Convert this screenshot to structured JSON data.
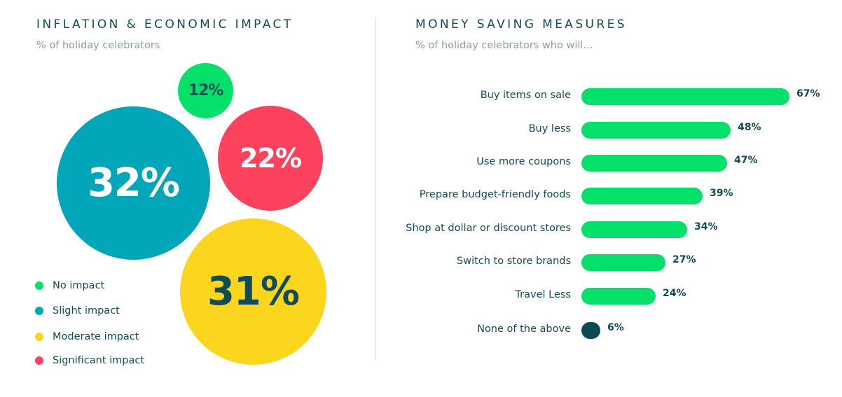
{
  "left_panel": {
    "title": "INFLATION & ECONOMIC IMPACT",
    "subtitle": "% of holiday celebrators"
  },
  "right_panel": {
    "title": "MONEY SAVING MEASURES",
    "subtitle": "% of holiday celebrators who will..."
  },
  "chart_data": [
    {
      "type": "bubble",
      "title": "INFLATION & ECONOMIC IMPACT",
      "subtitle": "% of holiday celebrators",
      "legend_position": "bottom-left",
      "categories": [
        "No impact",
        "Slight impact",
        "Moderate impact",
        "Significant impact"
      ],
      "values": [
        12,
        32,
        31,
        22
      ],
      "value_labels": [
        "12%",
        "32%",
        "31%",
        "22%"
      ],
      "colors": [
        "#05e06a",
        "#02a6b9",
        "#fcd51f",
        "#fd425d"
      ]
    },
    {
      "type": "bar",
      "orientation": "horizontal",
      "title": "MONEY SAVING MEASURES",
      "subtitle": "% of holiday celebrators who will...",
      "categories": [
        "Buy items on sale",
        "Buy less",
        "Use more coupons",
        "Prepare budget-friendly foods",
        "Shop at dollar or discount stores",
        "Switch to store brands",
        "Travel Less",
        "None of the above"
      ],
      "values": [
        67,
        48,
        47,
        39,
        34,
        27,
        24,
        6
      ],
      "value_labels": [
        "67%",
        "48%",
        "47%",
        "39%",
        "34%",
        "27%",
        "24%",
        "6%"
      ],
      "bar_colors": [
        "#05e06a",
        "#05e06a",
        "#05e06a",
        "#05e06a",
        "#05e06a",
        "#05e06a",
        "#05e06a",
        "#0e4a54"
      ],
      "grid": false
    }
  ],
  "colors": {
    "text_dark": "#0f4c53",
    "text_muted": "#8a9ea2",
    "divider": "#cfdfe0"
  }
}
